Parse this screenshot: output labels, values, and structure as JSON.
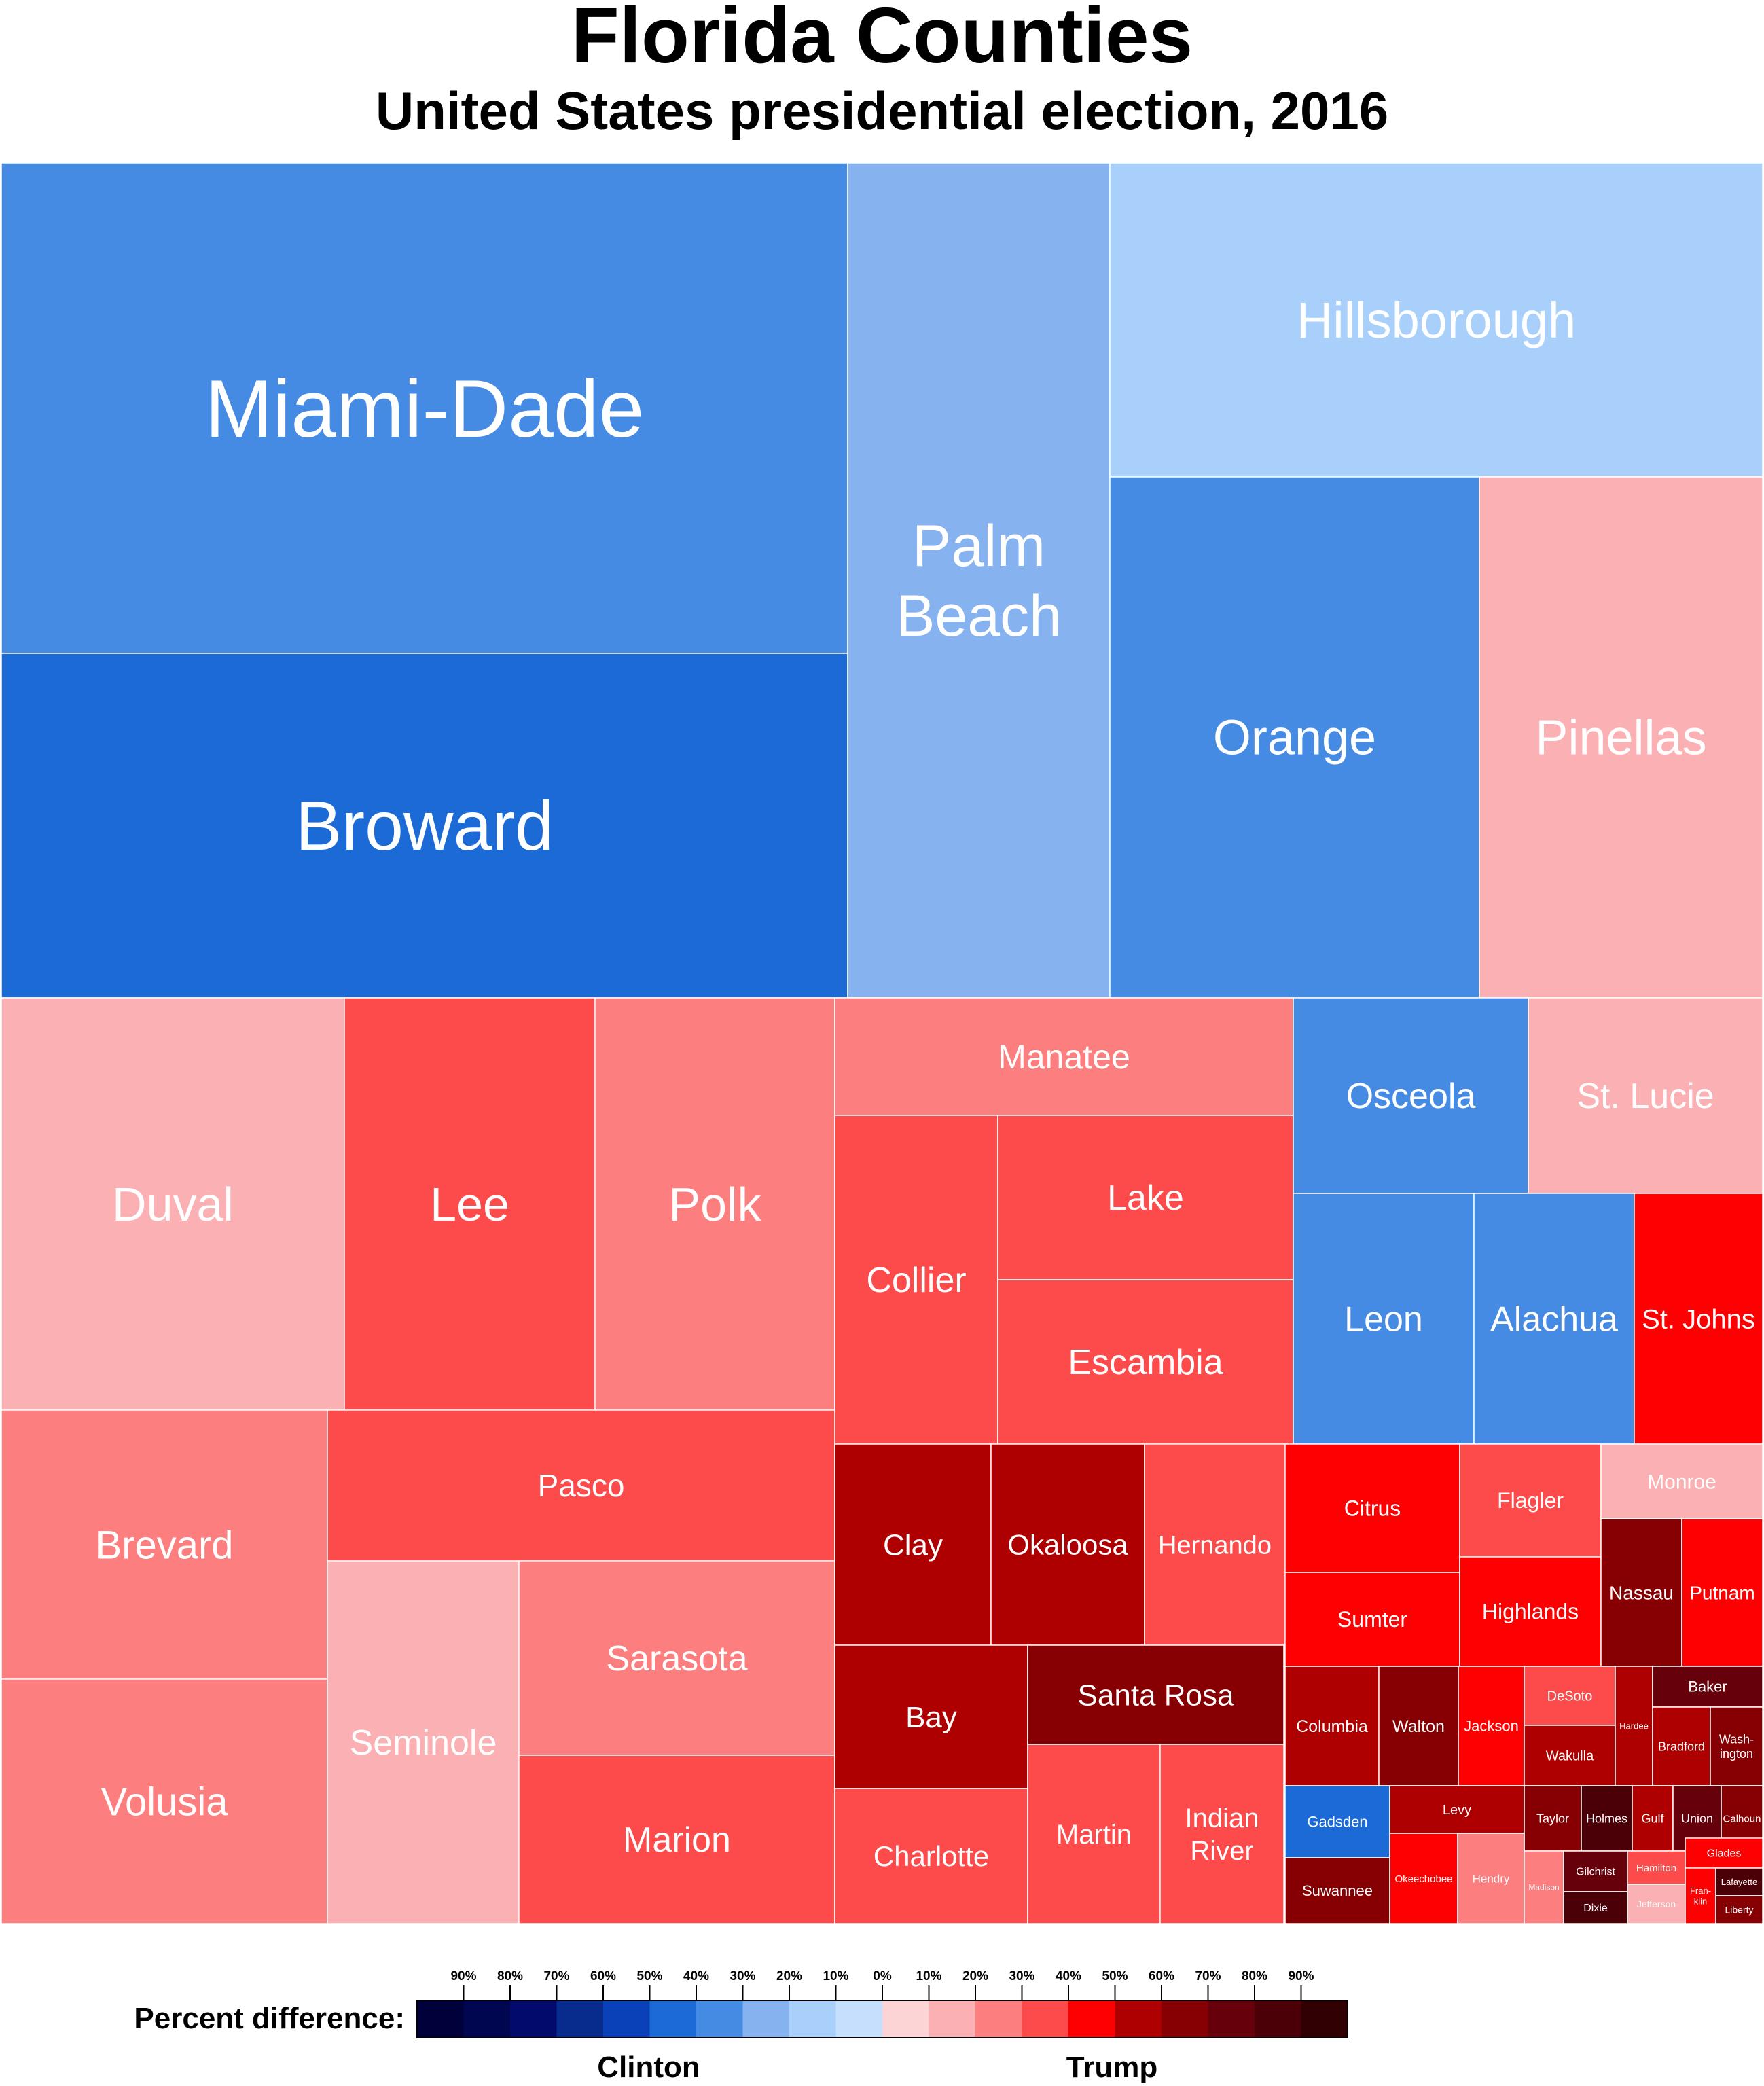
{
  "title": "Florida Counties",
  "subtitle": "United States presidential election, 2016",
  "chart_data": {
    "type": "treemap",
    "metric": "Percent difference",
    "legend": {
      "label": "Percent difference:",
      "left_label": "Clinton",
      "right_label": "Trump",
      "clinton_ticks": [
        "90%",
        "80%",
        "70%",
        "60%",
        "50%",
        "40%",
        "30%",
        "20%",
        "10%",
        "0%"
      ],
      "trump_ticks": [
        "10%",
        "20%",
        "30%",
        "40%",
        "50%",
        "60%",
        "70%",
        "80%",
        "90%"
      ],
      "clinton_colors": [
        "#00003a",
        "#000650",
        "#020b6b",
        "#072c8e",
        "#0a40b8",
        "#1b6ad6",
        "#468be3",
        "#86b3ef",
        "#a9d0fb",
        "#c6dffc"
      ],
      "trump_colors": [
        "#fdd4d5",
        "#fbb1b3",
        "#fd7e7e",
        "#fd4a4a",
        "#fe0002",
        "#af0001",
        "#860003",
        "#66000a",
        "#4a0006",
        "#300002"
      ]
    },
    "counties": [
      {
        "name": "Miami-Dade",
        "winner": "Clinton",
        "bucket": 3
      },
      {
        "name": "Broward",
        "winner": "Clinton",
        "bucket": 4
      },
      {
        "name": "Palm Beach",
        "winner": "Clinton",
        "bucket": 2
      },
      {
        "name": "Hillsborough",
        "winner": "Clinton",
        "bucket": 1
      },
      {
        "name": "Orange",
        "winner": "Clinton",
        "bucket": 3
      },
      {
        "name": "Pinellas",
        "winner": "Trump",
        "bucket": 1
      },
      {
        "name": "Duval",
        "winner": "Trump",
        "bucket": 1
      },
      {
        "name": "Lee",
        "winner": "Trump",
        "bucket": 3
      },
      {
        "name": "Polk",
        "winner": "Trump",
        "bucket": 2
      },
      {
        "name": "Manatee",
        "winner": "Trump",
        "bucket": 2
      },
      {
        "name": "Collier",
        "winner": "Trump",
        "bucket": 3
      },
      {
        "name": "Lake",
        "winner": "Trump",
        "bucket": 3
      },
      {
        "name": "Escambia",
        "winner": "Trump",
        "bucket": 3
      },
      {
        "name": "Osceola",
        "winner": "Clinton",
        "bucket": 3
      },
      {
        "name": "St. Lucie",
        "winner": "Trump",
        "bucket": 1
      },
      {
        "name": "Leon",
        "winner": "Clinton",
        "bucket": 3
      },
      {
        "name": "Alachua",
        "winner": "Clinton",
        "bucket": 3
      },
      {
        "name": "St. Johns",
        "winner": "Trump",
        "bucket": 4
      },
      {
        "name": "Brevard",
        "winner": "Trump",
        "bucket": 2
      },
      {
        "name": "Volusia",
        "winner": "Trump",
        "bucket": 2
      },
      {
        "name": "Pasco",
        "winner": "Trump",
        "bucket": 3
      },
      {
        "name": "Seminole",
        "winner": "Trump",
        "bucket": 1
      },
      {
        "name": "Sarasota",
        "winner": "Trump",
        "bucket": 2
      },
      {
        "name": "Marion",
        "winner": "Trump",
        "bucket": 3
      },
      {
        "name": "Clay",
        "winner": "Trump",
        "bucket": 5
      },
      {
        "name": "Okaloosa",
        "winner": "Trump",
        "bucket": 5
      },
      {
        "name": "Hernando",
        "winner": "Trump",
        "bucket": 3
      },
      {
        "name": "Bay",
        "winner": "Trump",
        "bucket": 5
      },
      {
        "name": "Santa Rosa",
        "winner": "Trump",
        "bucket": 6
      },
      {
        "name": "Charlotte",
        "winner": "Trump",
        "bucket": 3
      },
      {
        "name": "Martin",
        "winner": "Trump",
        "bucket": 3
      },
      {
        "name": "Indian River",
        "winner": "Trump",
        "bucket": 3
      },
      {
        "name": "Citrus",
        "winner": "Trump",
        "bucket": 4
      },
      {
        "name": "Sumter",
        "winner": "Trump",
        "bucket": 4
      },
      {
        "name": "Flagler",
        "winner": "Trump",
        "bucket": 3
      },
      {
        "name": "Highlands",
        "winner": "Trump",
        "bucket": 4
      },
      {
        "name": "Monroe",
        "winner": "Trump",
        "bucket": 1
      },
      {
        "name": "Nassau",
        "winner": "Trump",
        "bucket": 6
      },
      {
        "name": "Putnam",
        "winner": "Trump",
        "bucket": 4
      },
      {
        "name": "Columbia",
        "winner": "Trump",
        "bucket": 5
      },
      {
        "name": "Walton",
        "winner": "Trump",
        "bucket": 6
      },
      {
        "name": "Jackson",
        "winner": "Trump",
        "bucket": 4
      },
      {
        "name": "DeSoto",
        "winner": "Trump",
        "bucket": 3
      },
      {
        "name": "Wakulla",
        "winner": "Trump",
        "bucket": 5
      },
      {
        "name": "Hardee",
        "winner": "Trump",
        "bucket": 5
      },
      {
        "name": "Baker",
        "winner": "Trump",
        "bucket": 7
      },
      {
        "name": "Bradford",
        "winner": "Trump",
        "bucket": 5
      },
      {
        "name": "Wash-ington",
        "winner": "Trump",
        "bucket": 6
      },
      {
        "name": "Gadsden",
        "winner": "Clinton",
        "bucket": 4
      },
      {
        "name": "Levy",
        "winner": "Trump",
        "bucket": 5
      },
      {
        "name": "Taylor",
        "winner": "Trump",
        "bucket": 6
      },
      {
        "name": "Holmes",
        "winner": "Trump",
        "bucket": 8
      },
      {
        "name": "Gulf",
        "winner": "Trump",
        "bucket": 5
      },
      {
        "name": "Union",
        "winner": "Trump",
        "bucket": 7
      },
      {
        "name": "Calhoun",
        "winner": "Trump",
        "bucket": 6
      },
      {
        "name": "Suwannee",
        "winner": "Trump",
        "bucket": 6
      },
      {
        "name": "Okeechobee",
        "winner": "Trump",
        "bucket": 4
      },
      {
        "name": "Hendry",
        "winner": "Trump",
        "bucket": 2
      },
      {
        "name": "Madison",
        "winner": "Trump",
        "bucket": 2
      },
      {
        "name": "Gilchrist",
        "winner": "Trump",
        "bucket": 7
      },
      {
        "name": "Dixie",
        "winner": "Trump",
        "bucket": 8
      },
      {
        "name": "Hamilton",
        "winner": "Trump",
        "bucket": 3
      },
      {
        "name": "Glades",
        "winner": "Trump",
        "bucket": 4
      },
      {
        "name": "Jefferson",
        "winner": "Trump",
        "bucket": 1
      },
      {
        "name": "Fran-klin",
        "winner": "Trump",
        "bucket": 4
      },
      {
        "name": "Lafayette",
        "winner": "Trump",
        "bucket": 8
      },
      {
        "name": "Liberty",
        "winner": "Trump",
        "bucket": 6
      }
    ]
  }
}
